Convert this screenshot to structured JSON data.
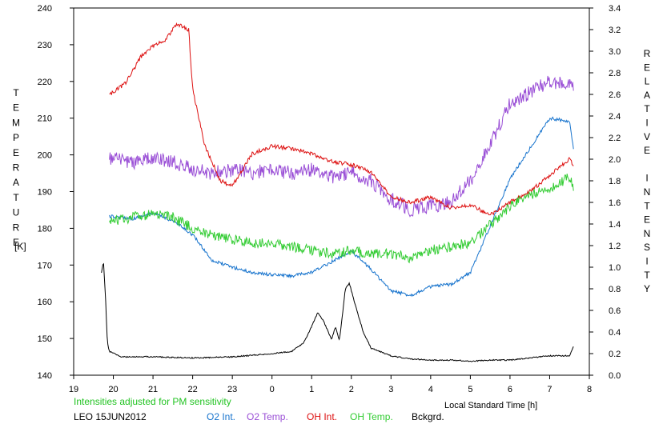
{
  "chart_data": {
    "type": "line",
    "title": "",
    "xlabel": "Local Standard Time [h]",
    "ylabel_left": "TEMPERATURE",
    "ylabel_left_unit": "[K]",
    "ylabel_right": "RELATIVE INTENSITY",
    "xlim": [
      19,
      32
    ],
    "x_tick_labels": [
      "19",
      "20",
      "21",
      "22",
      "23",
      "0",
      "1",
      "2",
      "3",
      "4",
      "5",
      "6",
      "7",
      "8"
    ],
    "ylim_left": [
      140,
      240
    ],
    "y_left_ticks": [
      "140",
      "150",
      "160",
      "170",
      "180",
      "190",
      "200",
      "210",
      "220",
      "230",
      "240"
    ],
    "ylim_right": [
      0.0,
      3.4
    ],
    "y_right_ticks": [
      "0.0",
      "0.2",
      "0.4",
      "0.6",
      "0.8",
      "1.0",
      "1.2",
      "1.4",
      "1.6",
      "1.8",
      "2.0",
      "2.2",
      "2.4",
      "2.6",
      "2.8",
      "3.0",
      "3.2",
      "3.4"
    ],
    "note": "Intensities adjusted for PM sensitivity",
    "station": "LEO 15JUN2012",
    "grid": false,
    "legend_position": "bottom",
    "colors": {
      "o2_int": "#1874cd",
      "o2_temp": "#9a4fd6",
      "oh_int": "#dd1111",
      "oh_temp": "#33cc33",
      "bckgrd": "#000000",
      "note": "#22c322"
    },
    "series": [
      {
        "name": "O2 Int.",
        "axis": "right",
        "x": [
          19.9,
          20.5,
          21.0,
          21.5,
          22.0,
          22.5,
          23.0,
          23.5,
          24.0,
          24.5,
          25.0,
          25.5,
          26.0,
          26.5,
          27.0,
          27.5,
          28.0,
          28.5,
          29.0,
          29.5,
          30.0,
          30.5,
          31.0,
          31.5,
          31.6
        ],
        "y": [
          1.47,
          1.45,
          1.5,
          1.43,
          1.3,
          1.06,
          1.0,
          0.95,
          0.93,
          0.92,
          0.95,
          1.05,
          1.15,
          0.98,
          0.78,
          0.74,
          0.82,
          0.84,
          0.95,
          1.38,
          1.82,
          2.1,
          2.38,
          2.35,
          2.09
        ]
      },
      {
        "name": "O2 Temp.",
        "axis": "left",
        "x": [
          19.9,
          20.5,
          21.0,
          21.5,
          22.0,
          22.5,
          23.0,
          23.5,
          24.0,
          24.5,
          25.0,
          25.5,
          26.0,
          26.5,
          27.0,
          27.5,
          28.0,
          28.5,
          29.0,
          29.5,
          30.0,
          30.5,
          31.0,
          31.5,
          31.6
        ],
        "y": [
          199,
          198,
          199,
          198,
          196,
          195,
          196,
          195,
          196,
          195,
          196,
          194,
          195,
          193,
          188,
          185,
          186,
          187,
          193,
          203,
          214,
          217,
          220,
          219,
          218
        ]
      },
      {
        "name": "OH Int.",
        "axis": "right",
        "x": [
          19.9,
          20.3,
          20.7,
          21.0,
          21.3,
          21.6,
          21.9,
          22.0,
          22.3,
          22.7,
          23.0,
          23.5,
          24.0,
          24.5,
          25.0,
          25.5,
          26.0,
          26.5,
          27.0,
          27.5,
          28.0,
          28.5,
          29.0,
          29.5,
          30.0,
          30.5,
          31.0,
          31.5,
          31.6
        ],
        "y": [
          2.6,
          2.7,
          2.95,
          3.05,
          3.1,
          3.25,
          3.2,
          2.65,
          2.13,
          1.8,
          1.75,
          2.05,
          2.12,
          2.1,
          2.05,
          1.98,
          1.95,
          1.88,
          1.65,
          1.6,
          1.65,
          1.55,
          1.58,
          1.48,
          1.6,
          1.7,
          1.85,
          2.0,
          1.95
        ]
      },
      {
        "name": "OH Temp.",
        "axis": "left",
        "x": [
          19.9,
          20.5,
          21.0,
          21.5,
          22.0,
          22.5,
          23.0,
          23.5,
          24.0,
          24.5,
          25.0,
          25.5,
          26.0,
          26.5,
          27.0,
          27.5,
          28.0,
          28.5,
          29.0,
          29.5,
          30.0,
          30.5,
          31.0,
          31.5,
          31.6
        ],
        "y": [
          182,
          183,
          184,
          183,
          180,
          178,
          177,
          176,
          176,
          175,
          174,
          173,
          174,
          173,
          173,
          172,
          174,
          175,
          176,
          181,
          186,
          189,
          191,
          194,
          191
        ]
      },
      {
        "name": "Bckgrd.",
        "axis": "right",
        "x": [
          19.7,
          19.75,
          19.8,
          19.85,
          19.9,
          20.2,
          21.0,
          22.0,
          23.0,
          24.0,
          24.5,
          24.8,
          25.0,
          25.15,
          25.3,
          25.5,
          25.6,
          25.7,
          25.85,
          25.95,
          26.1,
          26.3,
          26.5,
          27.0,
          27.5,
          28.0,
          28.5,
          29.0,
          29.5,
          30.0,
          30.5,
          31.0,
          31.5,
          31.6
        ],
        "y": [
          0.95,
          1.05,
          0.75,
          0.3,
          0.22,
          0.17,
          0.17,
          0.16,
          0.17,
          0.2,
          0.22,
          0.3,
          0.45,
          0.58,
          0.5,
          0.33,
          0.45,
          0.32,
          0.8,
          0.85,
          0.65,
          0.4,
          0.25,
          0.18,
          0.15,
          0.14,
          0.14,
          0.13,
          0.14,
          0.14,
          0.16,
          0.18,
          0.18,
          0.27
        ]
      }
    ]
  }
}
